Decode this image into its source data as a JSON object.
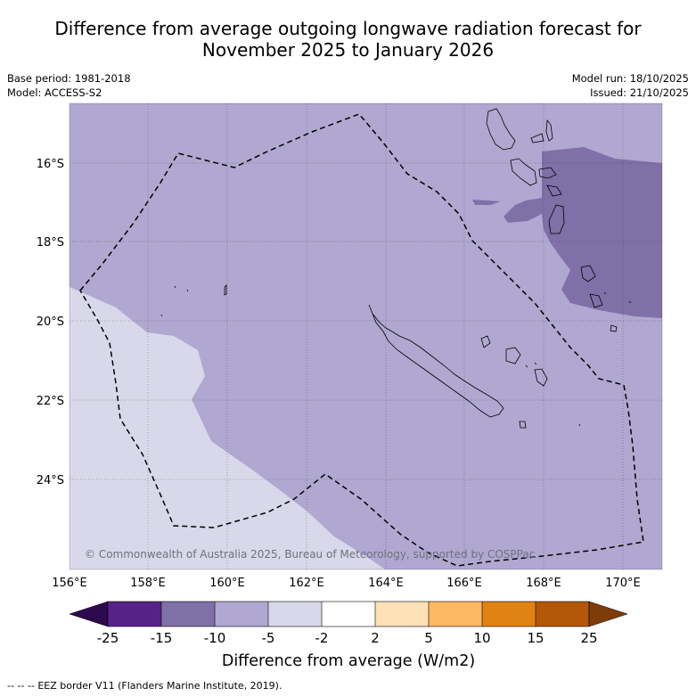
{
  "title": {
    "line1": "Difference from average outgoing longwave radiation forecast for",
    "line2": "November 2025 to January 2026"
  },
  "meta": {
    "base_period": "Base period: 1981-2018",
    "model": "Model: ACCESS-S2",
    "model_run": "Model run: 18/10/2025",
    "issued": "Issued: 21/10/2025"
  },
  "map": {
    "lon_range": [
      156.0,
      171.0
    ],
    "lat_range": [
      -26.2,
      -14.4
    ],
    "x_ticks": [
      "156°E",
      "158°E",
      "160°E",
      "162°E",
      "164°E",
      "166°E",
      "168°E",
      "170°E"
    ],
    "y_ticks": [
      "16°S",
      "18°S",
      "20°S",
      "22°S",
      "24°S"
    ],
    "copyright": "© Commonwealth of Australia 2025, Bureau of Meteorology, supported by COSPPac",
    "regions": [
      {
        "name": "-5 to -2",
        "color": "#d8d8ea"
      },
      {
        "name": "-10 to -5",
        "color": "#b0a8d0"
      },
      {
        "name": "-15 to -10",
        "color": "#8070a8"
      }
    ]
  },
  "colorbar": {
    "ticks": [
      "-25",
      "-15",
      "-10",
      "-5",
      "-2",
      "2",
      "5",
      "10",
      "15",
      "25"
    ],
    "colors": [
      "#562288",
      "#8070a8",
      "#b0a8d0",
      "#d8d8ea",
      "#ffffff",
      "#fde0b6",
      "#fdb863",
      "#e08214",
      "#b35806"
    ],
    "under_color": "#2d0a4e",
    "over_color": "#7f3b08",
    "label": "Difference from average (W/m2)"
  },
  "footer": {
    "legend_symbol": "--  --  --",
    "legend_text": "EEZ border V11 (Flanders Marine Institute, 2019)."
  }
}
